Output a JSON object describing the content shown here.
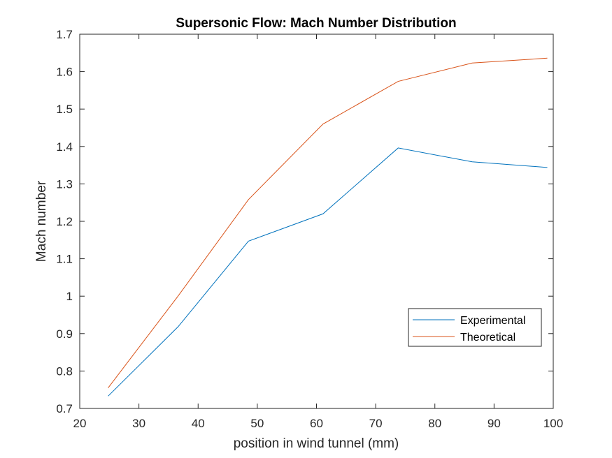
{
  "chart_data": {
    "type": "line",
    "title": "Supersonic Flow: Mach Number Distribution",
    "xlabel": "position in wind tunnel (mm)",
    "ylabel": "Mach number",
    "xlim": [
      20,
      100
    ],
    "ylim": [
      0.7,
      1.7
    ],
    "xticks": [
      "20",
      "30",
      "40",
      "50",
      "60",
      "70",
      "80",
      "90",
      "100"
    ],
    "yticks": [
      "0.7",
      "0.8",
      "0.9",
      "1",
      "1.1",
      "1.2",
      "1.3",
      "1.4",
      "1.5",
      "1.6",
      "1.7"
    ],
    "grid": false,
    "legend_position": "lower-right",
    "x": [
      24.8,
      36.6,
      48.5,
      61.1,
      73.8,
      86.3,
      99
    ],
    "series": [
      {
        "name": "Experimental",
        "color": "#0072BD",
        "values": [
          0.733,
          0.918,
          1.147,
          1.22,
          1.396,
          1.359,
          1.344
        ]
      },
      {
        "name": "Theoretical",
        "color": "#D95319",
        "values": [
          0.755,
          1.0,
          1.258,
          1.46,
          1.574,
          1.623,
          1.636
        ]
      }
    ]
  }
}
